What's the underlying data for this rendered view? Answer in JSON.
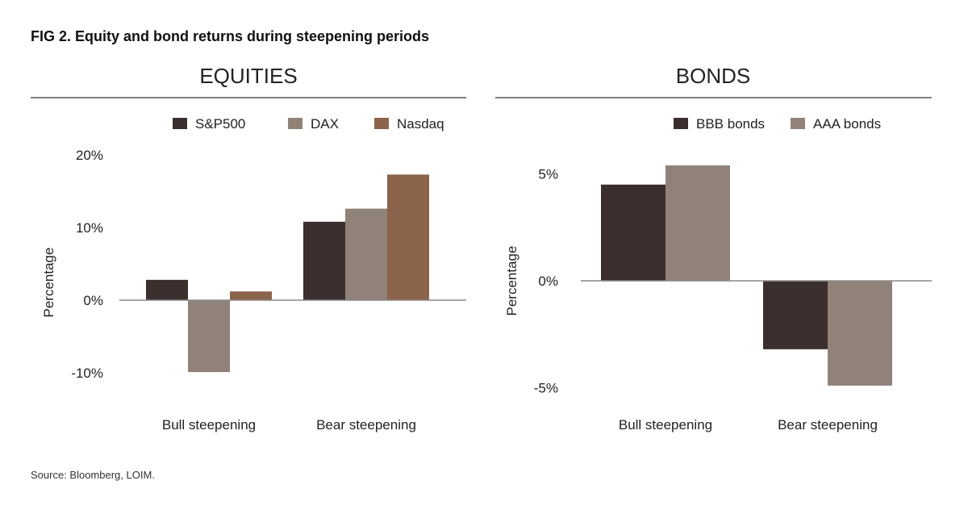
{
  "title": "FIG 2. Equity and bond returns during steepening periods",
  "source": "Source: Bloomberg, LOIM.",
  "chart_data": [
    {
      "type": "bar",
      "title": "EQUITIES",
      "ylabel": "Percentage",
      "xlabel": "",
      "categories": [
        "Bull steepening",
        "Bear steepening"
      ],
      "yticks": [
        20,
        10,
        0,
        -10
      ],
      "ytick_labels": [
        "20%",
        "10%",
        "0%",
        "-10%"
      ],
      "ylim": [
        -11,
        21
      ],
      "legend_position": "top-right",
      "series": [
        {
          "name": "S&P500",
          "color": "#3b2f2d",
          "values": [
            2.8,
            10.8
          ]
        },
        {
          "name": "DAX",
          "color": "#918279",
          "values": [
            -9.9,
            12.6
          ]
        },
        {
          "name": "Nasdaq",
          "color": "#8c634b",
          "values": [
            1.2,
            17.3
          ]
        }
      ]
    },
    {
      "type": "bar",
      "title": "BONDS",
      "ylabel": "Percentage",
      "xlabel": "",
      "categories": [
        "Bull steepening",
        "Bear steepening"
      ],
      "yticks": [
        5,
        0,
        -5
      ],
      "ytick_labels": [
        "5%",
        "0%",
        "-5%"
      ],
      "ylim": [
        -5.5,
        6
      ],
      "legend_position": "top-right",
      "series": [
        {
          "name": "BBB bonds",
          "color": "#3b2f2d",
          "values": [
            4.5,
            -3.2
          ]
        },
        {
          "name": "AAA bonds",
          "color": "#918279",
          "values": [
            5.4,
            -4.9
          ]
        }
      ]
    }
  ]
}
